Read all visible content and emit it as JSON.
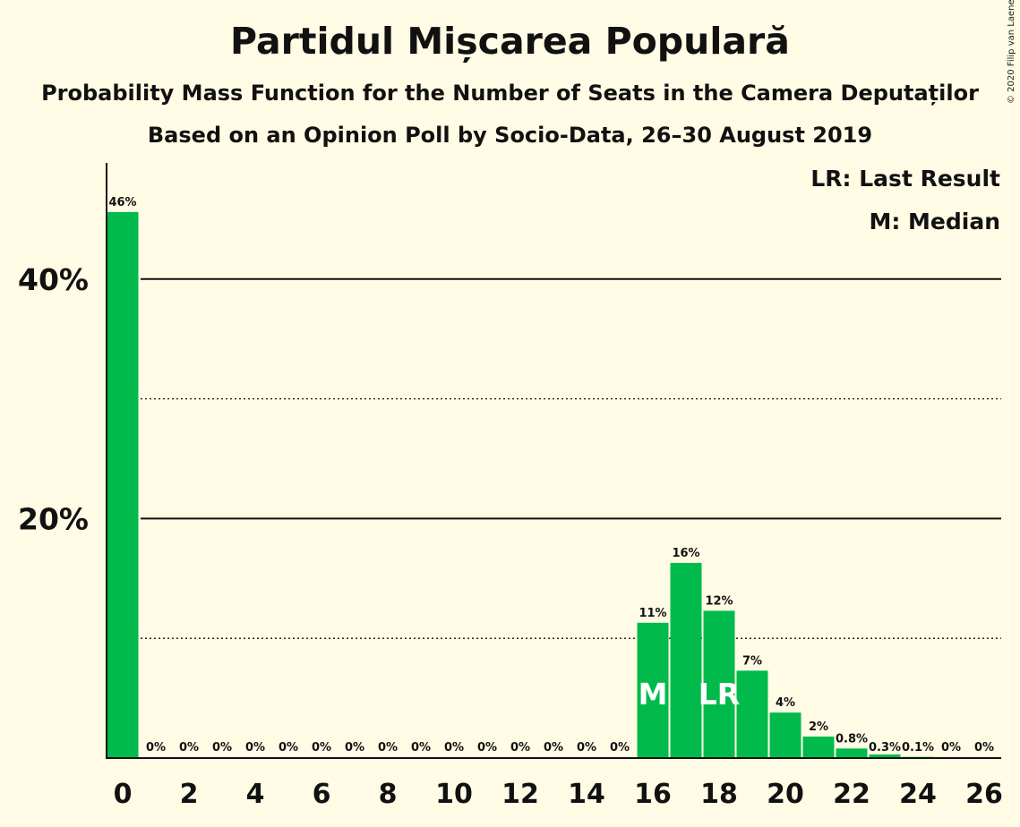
{
  "chart_data": {
    "type": "bar",
    "title": "Partidul Mișcarea Populară",
    "subtitle": "Probability Mass Function for the Number of Seats in the Camera Deputaților",
    "subtitle2": "Based on an Opinion Poll by Socio-Data, 26–30 August 2019",
    "copyright": "© 2020 Filip van Laenen",
    "legend": [
      "LR: Last Result",
      "M: Median"
    ],
    "x": [
      0,
      1,
      2,
      3,
      4,
      5,
      6,
      7,
      8,
      9,
      10,
      11,
      12,
      13,
      14,
      15,
      16,
      17,
      18,
      19,
      20,
      21,
      22,
      23,
      24,
      25,
      26
    ],
    "values": [
      45.6,
      0,
      0,
      0,
      0,
      0,
      0,
      0,
      0,
      0,
      0,
      0,
      0,
      0,
      0,
      0,
      11.3,
      16.3,
      12.3,
      7.3,
      3.8,
      1.8,
      0.8,
      0.3,
      0.1,
      0,
      0
    ],
    "data_labels": [
      "46%",
      "0%",
      "0%",
      "0%",
      "0%",
      "0%",
      "0%",
      "0%",
      "0%",
      "0%",
      "0%",
      "0%",
      "0%",
      "0%",
      "0%",
      "0%",
      "11%",
      "16%",
      "12%",
      "7%",
      "4%",
      "2%",
      "0.8%",
      "0.3%",
      "0.1%",
      "0%",
      "0%"
    ],
    "x_tick_labels": [
      "0",
      "2",
      "4",
      "6",
      "8",
      "10",
      "12",
      "14",
      "16",
      "18",
      "20",
      "22",
      "24",
      "26"
    ],
    "y_tick_labels": [
      "20%",
      "40%"
    ],
    "y_solid_lines": [
      20,
      40
    ],
    "y_dotted_lines": [
      10,
      30
    ],
    "ylim": [
      0,
      49.7
    ],
    "median_marker": {
      "x": 16,
      "label": "M"
    },
    "last_result_marker": {
      "x": 18,
      "label": "LR"
    },
    "bar_color": "#00bb4c"
  }
}
